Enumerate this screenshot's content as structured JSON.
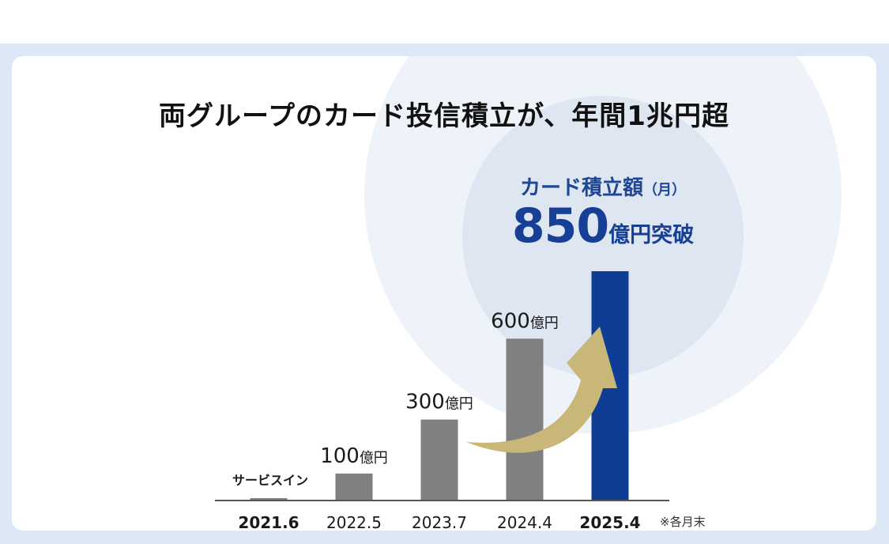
{
  "title": "両グループのカード投信積立が、年間1兆円超",
  "highlight": {
    "label": "カード積立額",
    "label_suffix": "（月）",
    "value": "850",
    "value_unit": "億円突破"
  },
  "note": "※各月末",
  "colors": {
    "gray_bar": "#808080",
    "highlight_bar": "#0f3d96",
    "arrow": "#c9b679",
    "title": "#1d4796"
  },
  "chart_data": {
    "type": "bar",
    "categories": [
      "2021.6",
      "2022.5",
      "2023.7",
      "2024.4",
      "2025.4"
    ],
    "values": [
      5,
      100,
      300,
      600,
      850
    ],
    "value_labels": [
      "サービスイン",
      "100億円",
      "300億円",
      "600億円",
      ""
    ],
    "bold_categories": [
      "2021.6",
      "2025.4"
    ],
    "highlight_index": 4,
    "ylim": [
      0,
      850
    ],
    "grid": false,
    "legend": "none"
  }
}
